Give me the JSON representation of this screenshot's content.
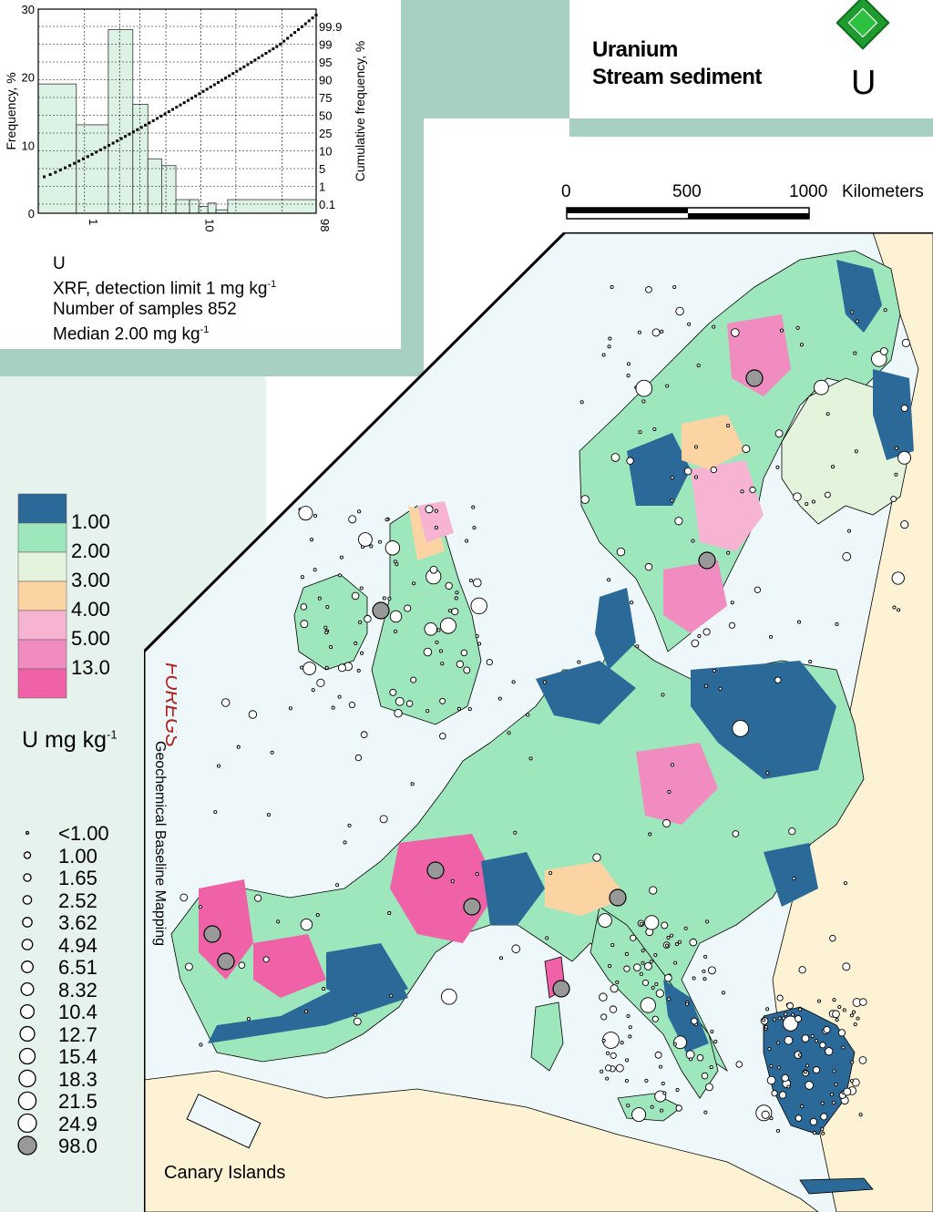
{
  "header": {
    "title_line1": "Uranium",
    "title_line2": "Stream sediment",
    "element_symbol": "U"
  },
  "scale_bar": {
    "ticks": [
      "0",
      "500",
      "1000"
    ],
    "unit": "Kilometers"
  },
  "histogram": {
    "y_label": "Frequency, %",
    "y2_label": "Cumulative frequency, %",
    "y_ticks": [
      "30",
      "20",
      "10",
      "0"
    ],
    "x_ticks": [
      "1",
      "10",
      "98"
    ],
    "cum_ticks": [
      "99.9",
      "99",
      "95",
      "90",
      "75",
      "50",
      "25",
      "10",
      "5",
      "1",
      "0.1"
    ],
    "element": "U",
    "method": "XRF, detection limit 1 mg kg",
    "method_sup": "-1",
    "samples": "Number of samples 852",
    "median": "Median 2.00 mg kg",
    "median_sup": "-1"
  },
  "chart_data": {
    "type": "bar",
    "categories": [
      "0.5-1",
      "1-2",
      "2-3",
      "3-4",
      "4-5",
      "5-6.5",
      "6.5-8",
      "8-10",
      "10-13",
      "13-15",
      "15-20",
      "20-98"
    ],
    "values": [
      19,
      13,
      27,
      16,
      8,
      7,
      2,
      2,
      1,
      1.5,
      0.5,
      2
    ],
    "xscale": "log",
    "xlim": [
      0.4,
      98
    ],
    "ylim": [
      0,
      30
    ],
    "grid": true
  },
  "color_legend": {
    "classes": [
      {
        "color": "#2b6a98",
        "label": "1.00"
      },
      {
        "color": "#9ee6bc",
        "label": "2.00"
      },
      {
        "color": "#e4f4dc",
        "label": "3.00"
      },
      {
        "color": "#fcd4a4",
        "label": "4.00"
      },
      {
        "color": "#f6b4d2",
        "label": "5.00"
      },
      {
        "color": "#f08cc0",
        "label": "13.0"
      },
      {
        "color": "#f062a8",
        "label": ""
      }
    ],
    "unit": "U mg kg",
    "unit_sup": "-1"
  },
  "symbol_legend": {
    "labels": [
      "<1.00",
      "1.00",
      "1.65",
      "2.52",
      "3.62",
      "4.94",
      "6.51",
      "8.32",
      "10.4",
      "12.7",
      "15.4",
      "18.3",
      "21.5",
      "24.9",
      "98.0"
    ]
  },
  "branding": {
    "logo": "FOREGS",
    "subtitle": "Geochemical Baseline Mapping"
  },
  "map": {
    "inset_label": "Canary Islands"
  },
  "colors": {
    "band": "#a8d0c2",
    "sea": "#eef8fa",
    "land_outside": "#fdf3d4",
    "logo_green": "#1e9b2e"
  }
}
